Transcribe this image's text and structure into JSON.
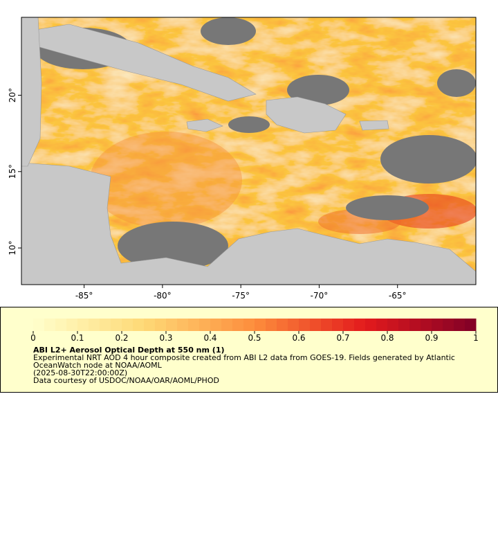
{
  "chart_data": {
    "type": "map",
    "xlim": [
      -89,
      -60
    ],
    "ylim": [
      7.6,
      25.1
    ],
    "xticks": [
      {
        "value": -85,
        "label": "-85°"
      },
      {
        "value": -80,
        "label": "-80°"
      },
      {
        "value": -75,
        "label": "-75°"
      },
      {
        "value": -70,
        "label": "-70°"
      },
      {
        "value": -65,
        "label": "-65°"
      }
    ],
    "yticks": [
      {
        "value": 10,
        "label": "10°"
      },
      {
        "value": 15,
        "label": "15°"
      },
      {
        "value": 20,
        "label": "20°"
      }
    ],
    "colorbar": {
      "lim": [
        0,
        1
      ],
      "ticks": [
        0,
        0.1,
        0.2,
        0.3,
        0.4,
        0.5,
        0.6,
        0.7,
        0.8,
        0.9,
        1
      ],
      "colors": [
        "#ffffcc",
        "#fed976",
        "#fd8d3c",
        "#e31a1c",
        "#800026"
      ]
    },
    "title": "ABI L2+ Aerosol Optical Depth at 550 nm (1)",
    "description": "Experimental NRT AOD 4 hour composite created from ABI L2 data from GOES-19. Fields generated by Atlantic OceanWatch node at NOAA/AOML",
    "time": "(2025-08-30T22:00:00Z)",
    "credit": "Data courtesy of USDOC/NOAA/OAR/AOML/PHOD"
  }
}
